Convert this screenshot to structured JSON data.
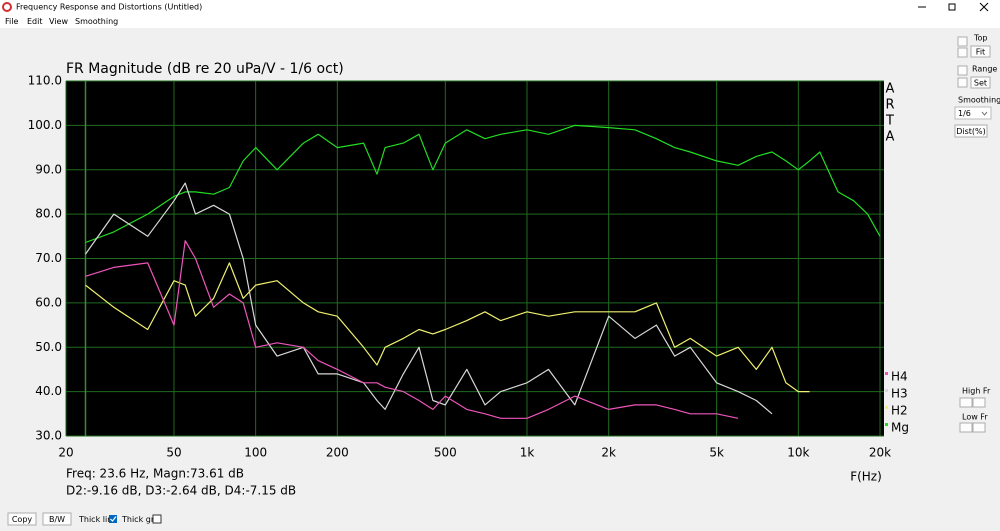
{
  "window": {
    "title": "Frequency Response and Distortions (Untitled)",
    "menu": [
      "File",
      "Edit",
      "View",
      "Smoothing"
    ],
    "side_panel": {
      "top_label": "Top",
      "fit": "Fit",
      "range_label": "Range",
      "set": "Set",
      "smoothing_label": "Smoothing",
      "smoothing_value": "1/6",
      "dist": "Dist(%)",
      "high_fr": "High Fr",
      "low_fr": "Low Fr"
    },
    "bottom_bar": {
      "copy": "Copy",
      "bw": "B/W",
      "thick_line": "Thick line",
      "thick_grid": "Thick grid"
    }
  },
  "chart_data": {
    "type": "line",
    "title": "FR Magnitude (dB re 20 uPa/V - 1/6 oct)",
    "x_label": "F(Hz)",
    "watermark": [
      "A",
      "R",
      "T",
      "A"
    ],
    "readout": [
      "Freq: 23.6 Hz, Magn:73.61 dB",
      "D2:-9.16 dB, D3:-2.64 dB, D4:-7.15 dB"
    ],
    "cursor_x": 23.6,
    "x_log": true,
    "grid": true,
    "xlim": [
      20,
      20000
    ],
    "ylim": [
      30,
      110
    ],
    "xticks": [
      20,
      50,
      100,
      200,
      500,
      {
        "value": 1000,
        "label": "1k"
      },
      {
        "value": 2000,
        "label": "2k"
      },
      {
        "value": 5000,
        "label": "5k"
      },
      {
        "value": 10000,
        "label": "10k"
      },
      {
        "value": 20000,
        "label": "20k"
      }
    ],
    "yticks": [
      {
        "value": 30,
        "label": "30.0"
      },
      {
        "value": 40,
        "label": "40.0"
      },
      {
        "value": 50,
        "label": "50.0"
      },
      {
        "value": 60,
        "label": "60.0"
      },
      {
        "value": 70,
        "label": "70.0"
      },
      {
        "value": 80,
        "label": "80.0"
      },
      {
        "value": 90,
        "label": "90.0"
      },
      {
        "value": 100,
        "label": "100.0"
      },
      {
        "value": 110,
        "label": "110.0"
      }
    ],
    "x": [
      23.6,
      30,
      40,
      50,
      55,
      60,
      70,
      80,
      90,
      100,
      120,
      150,
      170,
      200,
      250,
      280,
      300,
      350,
      400,
      450,
      500,
      600,
      700,
      800,
      1000,
      1200,
      1500,
      2000,
      2500,
      3000,
      3500,
      4000,
      5000,
      6000,
      7000,
      8000,
      9000,
      10000,
      11000,
      12000,
      14000,
      16000,
      18000,
      20000
    ],
    "series": [
      {
        "name": "Mg",
        "color": "#22dd22",
        "values": [
          73.6,
          76,
          80,
          84,
          85,
          85,
          84.5,
          86,
          92,
          95,
          90,
          96,
          98,
          95,
          96,
          89,
          95,
          96,
          98,
          90,
          96,
          99,
          97,
          98,
          99,
          98,
          100,
          99.5,
          99,
          97,
          95,
          94,
          92,
          91,
          93,
          94,
          92,
          90,
          92,
          94,
          85,
          83,
          80,
          75
        ]
      },
      {
        "name": "H2",
        "color": "#f0f070",
        "values": [
          64,
          59,
          54,
          65,
          64,
          57,
          61,
          69,
          61,
          64,
          65,
          60,
          58,
          57,
          50,
          46,
          50,
          52,
          54,
          53,
          54,
          56,
          58,
          56,
          58,
          57,
          58,
          58,
          58,
          60,
          50,
          52,
          48,
          50,
          45,
          50,
          42,
          40,
          40,
          null,
          null,
          null,
          null,
          null
        ]
      },
      {
        "name": "H3",
        "color": "#d8d8d8",
        "values": [
          71,
          80,
          75,
          83,
          87,
          80,
          82,
          80,
          70,
          55,
          48,
          50,
          44,
          44,
          42,
          38,
          36,
          44,
          50,
          38,
          37,
          45,
          37,
          40,
          42,
          45,
          37,
          57,
          52,
          55,
          48,
          50,
          42,
          40,
          38,
          35,
          null,
          null,
          null,
          null,
          null,
          null,
          null,
          null
        ]
      },
      {
        "name": "H4",
        "color": "#ee55bb",
        "values": [
          66,
          68,
          69,
          55,
          74,
          70,
          59,
          62,
          60,
          50,
          51,
          50,
          47,
          45,
          42,
          42,
          41,
          40,
          38,
          36,
          39,
          36,
          35,
          34,
          34,
          36,
          39,
          36,
          37,
          37,
          36,
          35,
          35,
          34,
          null,
          null,
          null,
          null,
          null,
          null,
          null,
          null,
          null,
          null
        ]
      }
    ]
  }
}
